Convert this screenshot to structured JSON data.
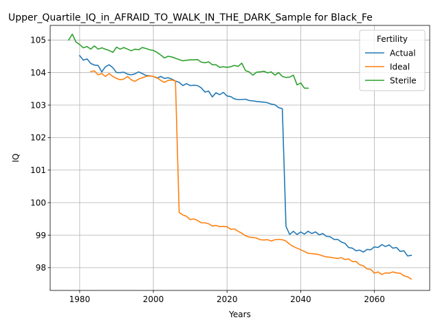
{
  "chart_data": {
    "type": "line",
    "title": "Upper_Quartile_IQ_in_AFRAID_TO_WALK_IN_THE_DARK_Sample for Black_Fe",
    "xlabel": "Years",
    "ylabel": "IQ",
    "xlim": [
      1972,
      2075
    ],
    "ylim": [
      97.3,
      105.45
    ],
    "xticks": [
      1980,
      2000,
      2020,
      2040,
      2060
    ],
    "yticks": [
      98,
      99,
      100,
      101,
      102,
      103,
      104,
      105
    ],
    "grid": true,
    "legend": {
      "title": "Fertility",
      "placement": "top-right"
    },
    "series": [
      {
        "name": "Actual",
        "color": "#1f77b4",
        "x": [
          1980,
          1981,
          1982,
          1983,
          1984,
          1985,
          1986,
          1987,
          1988,
          1989,
          1990,
          1991,
          1992,
          1993,
          1994,
          1995,
          1996,
          1997,
          1998,
          1999,
          2000,
          2001,
          2002,
          2003,
          2004,
          2005,
          2006,
          2007,
          2008,
          2009,
          2010,
          2011,
          2012,
          2013,
          2014,
          2015,
          2016,
          2017,
          2018,
          2019,
          2020,
          2021,
          2022,
          2023,
          2024,
          2025,
          2026,
          2027,
          2028,
          2029,
          2030,
          2031,
          2032,
          2033,
          2034,
          2035,
          2036,
          2037,
          2038,
          2039,
          2040,
          2041,
          2042,
          2043,
          2044,
          2045,
          2046,
          2047,
          2048,
          2049,
          2050,
          2051,
          2052,
          2053,
          2054,
          2055,
          2056,
          2057,
          2058,
          2059,
          2060,
          2061,
          2062,
          2063,
          2064,
          2065,
          2066,
          2067,
          2068,
          2069,
          2070
        ],
        "values": [
          104.52,
          104.38,
          104.42,
          104.28,
          104.23,
          104.22,
          104.02,
          104.18,
          104.24,
          104.15,
          104.0,
          104.0,
          104.01,
          103.95,
          103.93,
          103.96,
          104.02,
          103.97,
          103.91,
          103.9,
          103.88,
          103.83,
          103.88,
          103.82,
          103.84,
          103.8,
          103.74,
          103.7,
          103.6,
          103.66,
          103.6,
          103.61,
          103.6,
          103.53,
          103.4,
          103.43,
          103.25,
          103.38,
          103.32,
          103.39,
          103.28,
          103.26,
          103.19,
          103.17,
          103.17,
          103.18,
          103.14,
          103.13,
          103.11,
          103.1,
          103.09,
          103.07,
          103.03,
          103.01,
          102.92,
          102.89,
          99.27,
          99.02,
          99.12,
          99.02,
          99.1,
          99.03,
          99.12,
          99.05,
          99.1,
          99.01,
          99.05,
          98.96,
          98.95,
          98.87,
          98.87,
          98.79,
          98.75,
          98.62,
          98.6,
          98.52,
          98.54,
          98.48,
          98.56,
          98.55,
          98.64,
          98.62,
          98.71,
          98.65,
          98.7,
          98.6,
          98.62,
          98.5,
          98.52,
          98.36,
          98.38
        ]
      },
      {
        "name": "Ideal",
        "color": "#ff7f0e",
        "x": [
          1983,
          1984,
          1985,
          1986,
          1987,
          1988,
          1989,
          1990,
          1991,
          1992,
          1993,
          1994,
          1995,
          1996,
          1997,
          1998,
          1999,
          2000,
          2001,
          2002,
          2003,
          2004,
          2005,
          2006,
          2007,
          2008,
          2009,
          2010,
          2011,
          2012,
          2013,
          2014,
          2015,
          2016,
          2017,
          2018,
          2019,
          2020,
          2021,
          2022,
          2023,
          2024,
          2025,
          2026,
          2027,
          2028,
          2029,
          2030,
          2031,
          2032,
          2033,
          2034,
          2035,
          2036,
          2037,
          2038,
          2039,
          2040,
          2041,
          2042,
          2043,
          2044,
          2045,
          2046,
          2047,
          2048,
          2049,
          2050,
          2051,
          2052,
          2053,
          2054,
          2055,
          2056,
          2057,
          2058,
          2059,
          2060,
          2061,
          2062,
          2063,
          2064,
          2065,
          2066,
          2067,
          2068,
          2069,
          2070
        ],
        "values": [
          104.03,
          104.05,
          103.93,
          103.97,
          103.88,
          103.97,
          103.88,
          103.82,
          103.78,
          103.8,
          103.88,
          103.78,
          103.73,
          103.8,
          103.84,
          103.88,
          103.9,
          103.88,
          103.84,
          103.76,
          103.7,
          103.76,
          103.77,
          103.74,
          99.7,
          99.62,
          99.58,
          99.48,
          99.5,
          99.45,
          99.38,
          99.38,
          99.35,
          99.28,
          99.3,
          99.26,
          99.27,
          99.26,
          99.18,
          99.19,
          99.12,
          99.06,
          98.98,
          98.94,
          98.93,
          98.91,
          98.86,
          98.85,
          98.86,
          98.82,
          98.86,
          98.87,
          98.86,
          98.82,
          98.72,
          98.65,
          98.6,
          98.55,
          98.5,
          98.44,
          98.43,
          98.42,
          98.4,
          98.36,
          98.33,
          98.32,
          98.3,
          98.28,
          98.31,
          98.25,
          98.27,
          98.19,
          98.19,
          98.09,
          98.06,
          97.96,
          97.95,
          97.83,
          97.87,
          97.79,
          97.84,
          97.83,
          97.87,
          97.84,
          97.83,
          97.75,
          97.72,
          97.65
        ]
      },
      {
        "name": "Sterile",
        "color": "#2ca02c",
        "x": [
          1977,
          1978,
          1979,
          1980,
          1981,
          1982,
          1983,
          1984,
          1985,
          1986,
          1987,
          1988,
          1989,
          1990,
          1991,
          1992,
          1993,
          1994,
          1995,
          1996,
          1997,
          1998,
          1999,
          2000,
          2001,
          2002,
          2003,
          2004,
          2005,
          2006,
          2007,
          2008,
          2009,
          2010,
          2011,
          2012,
          2013,
          2014,
          2015,
          2016,
          2017,
          2018,
          2019,
          2020,
          2021,
          2022,
          2023,
          2024,
          2025,
          2026,
          2027,
          2028,
          2029,
          2030,
          2031,
          2032,
          2033,
          2034,
          2035,
          2036,
          2037,
          2038,
          2039,
          2040,
          2041,
          2042
        ],
        "values": [
          105.0,
          105.18,
          104.94,
          104.86,
          104.76,
          104.8,
          104.72,
          104.82,
          104.72,
          104.76,
          104.72,
          104.68,
          104.62,
          104.78,
          104.72,
          104.77,
          104.72,
          104.67,
          104.72,
          104.7,
          104.77,
          104.74,
          104.7,
          104.68,
          104.62,
          104.54,
          104.45,
          104.5,
          104.48,
          104.44,
          104.4,
          104.36,
          104.38,
          104.39,
          104.39,
          104.4,
          104.32,
          104.3,
          104.33,
          104.24,
          104.24,
          104.16,
          104.18,
          104.16,
          104.18,
          104.22,
          104.19,
          104.29,
          104.06,
          104.02,
          103.92,
          104.01,
          104.02,
          104.04,
          103.99,
          104.02,
          103.92,
          104.0,
          103.88,
          103.85,
          103.86,
          103.92,
          103.62,
          103.68,
          103.52,
          103.52
        ]
      }
    ]
  }
}
